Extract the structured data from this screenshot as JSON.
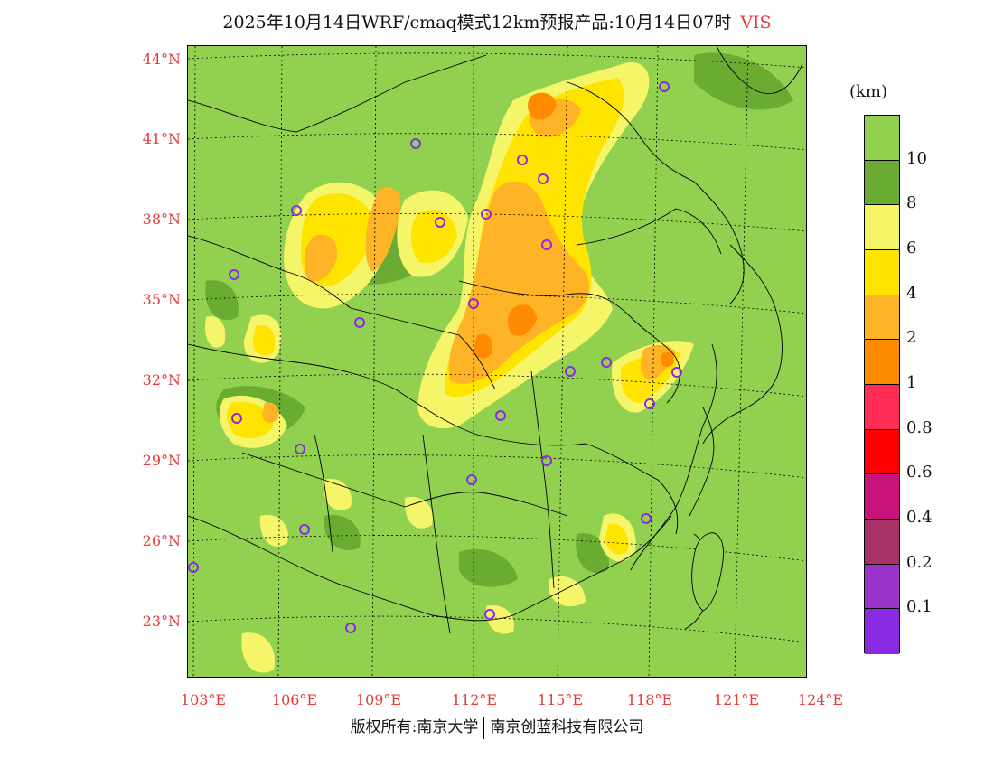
{
  "title": {
    "main": "2025年10月14日WRF/cmaq模式12km预报产品:10月14日07时",
    "variable": "VIS"
  },
  "map": {
    "lat_labels": [
      "44°N",
      "41°N",
      "38°N",
      "35°N",
      "32°N",
      "29°N",
      "26°N",
      "23°N"
    ],
    "lon_labels": [
      "103°E",
      "106°E",
      "109°E",
      "112°E",
      "115°E",
      "118°E",
      "121°E",
      "124°E"
    ],
    "colors": {
      "background": "#92d050",
      "dark_green": "#6aab32",
      "light_yellow": "#f5f56a",
      "yellow": "#ffe400",
      "light_orange": "#ffb327",
      "orange": "#ff8c00",
      "station": "#8a2be2"
    }
  },
  "colorbar": {
    "unit": "(km)",
    "labels": [
      "10",
      "8",
      "6",
      "4",
      "2",
      "1",
      "0.8",
      "0.6",
      "0.4",
      "0.2",
      "0.1"
    ],
    "colors": [
      "#92d050",
      "#6aab32",
      "#f5f56a",
      "#ffe400",
      "#ffb327",
      "#ff8c00",
      "#ff2d55",
      "#ff0000",
      "#c8147a",
      "#a83268",
      "#9a33c8",
      "#8a2be2"
    ]
  },
  "footer": {
    "left": "版权所有:南京大学",
    "right": "南京创蓝科技有限公司"
  }
}
